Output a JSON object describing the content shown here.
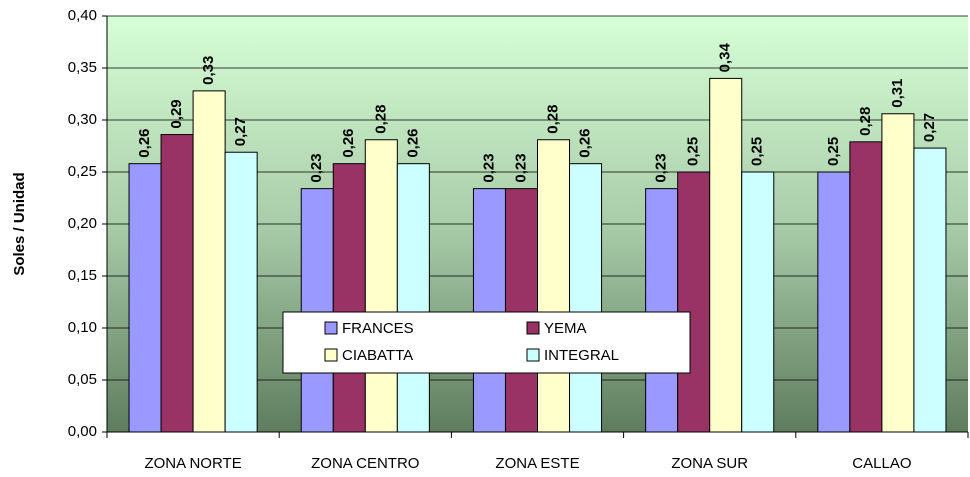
{
  "chart_data": {
    "type": "bar",
    "y_label": "Soles / Unidad",
    "categories": [
      "ZONA NORTE",
      "ZONA CENTRO",
      "ZONA ESTE",
      "ZONA SUR",
      "CALLAO"
    ],
    "series": [
      {
        "name": "FRANCES",
        "color": "#9999ff",
        "values": [
          0.258,
          0.234,
          0.234,
          0.234,
          0.25
        ],
        "value_labels": [
          "0,26",
          "0,23",
          "0,23",
          "0,23",
          "0,25"
        ]
      },
      {
        "name": "YEMA",
        "color": "#993366",
        "values": [
          0.286,
          0.258,
          0.234,
          0.25,
          0.279
        ],
        "value_labels": [
          "0,29",
          "0,26",
          "0,23",
          "0,25",
          "0,28"
        ]
      },
      {
        "name": "CIABATTA",
        "color": "#ffffcc",
        "values": [
          0.328,
          0.281,
          0.281,
          0.34,
          0.306
        ],
        "value_labels": [
          "0,33",
          "0,28",
          "0,28",
          "0,34",
          "0,31"
        ]
      },
      {
        "name": "INTEGRAL",
        "color": "#ccffff",
        "values": [
          0.269,
          0.258,
          0.258,
          0.25,
          0.273
        ],
        "value_labels": [
          "0,27",
          "0,26",
          "0,26",
          "0,25",
          "0,27"
        ]
      }
    ],
    "ylim": [
      0,
      0.4
    ],
    "yticks": [
      {
        "value": 0,
        "label": "0,00"
      },
      {
        "value": 0.05,
        "label": "0,05"
      },
      {
        "value": 0.1,
        "label": "0,10"
      },
      {
        "value": 0.15,
        "label": "0,15"
      },
      {
        "value": 0.2,
        "label": "0,20"
      },
      {
        "value": 0.25,
        "label": "0,25"
      },
      {
        "value": 0.3,
        "label": "0,30"
      },
      {
        "value": 0.35,
        "label": "0,35"
      },
      {
        "value": 0.4,
        "label": "0,40"
      }
    ],
    "grid": true,
    "legend": "lower center"
  }
}
